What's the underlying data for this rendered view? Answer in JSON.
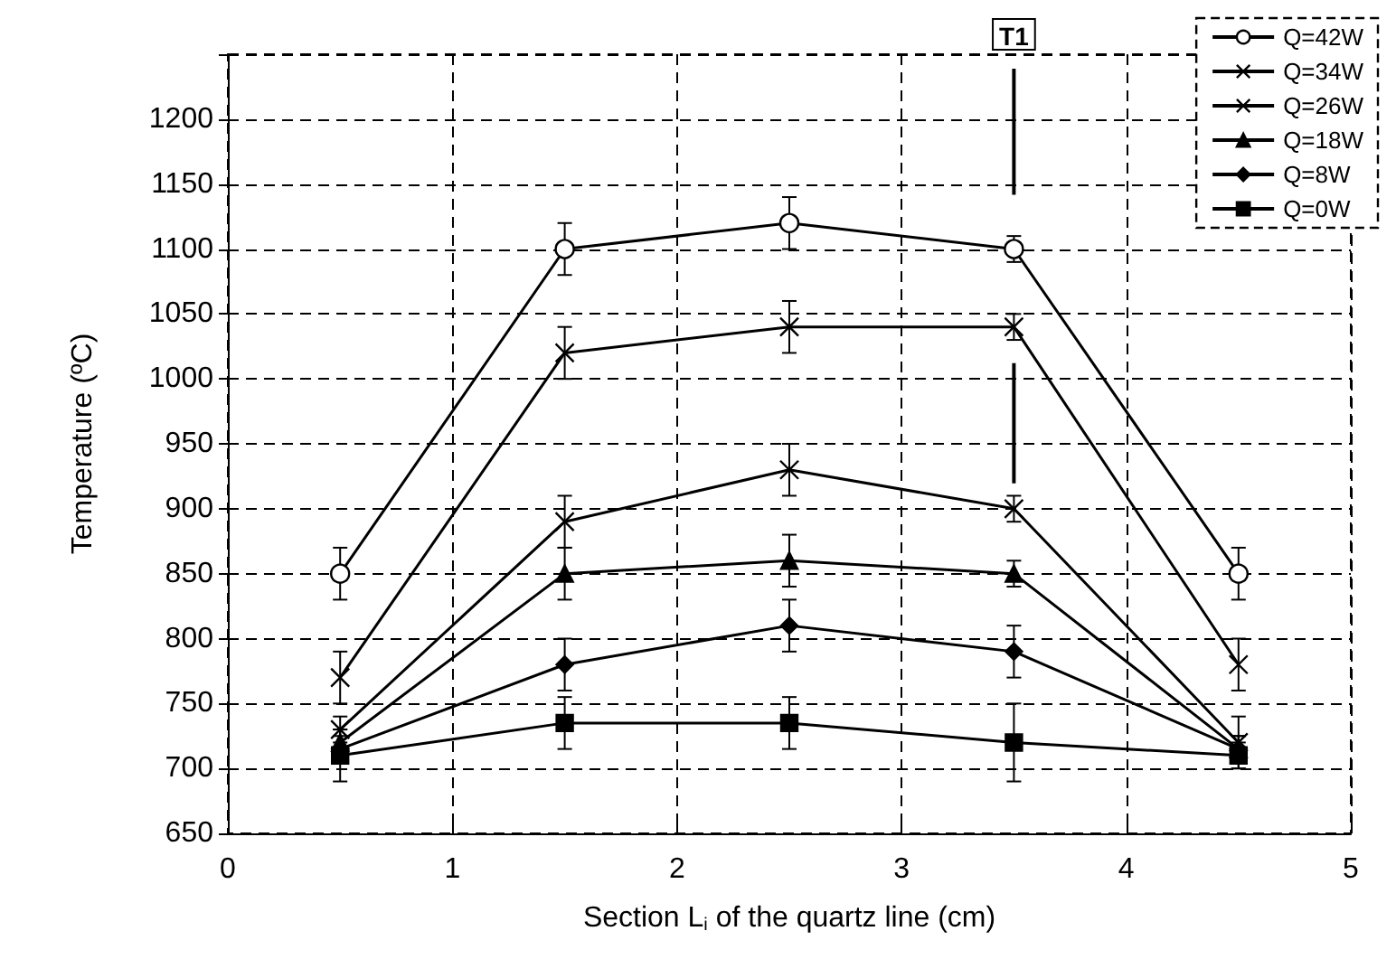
{
  "chart_data": {
    "type": "line",
    "xlabel": "Section L$_{i}$ of the quartz line (cm)",
    "ylabel": "Temperature (ºC)",
    "x": [
      0.5,
      1.5,
      2.5,
      3.5,
      4.5
    ],
    "series": [
      {
        "name": "Q=42W",
        "color": "#000000",
        "marker": "circle",
        "values": [
          850,
          1100,
          1120,
          1100,
          850
        ],
        "errors": [
          20,
          20,
          20,
          10,
          20
        ]
      },
      {
        "name": "Q=34W",
        "color": "#000000",
        "marker": "cross",
        "values": [
          770,
          1020,
          1040,
          1040,
          780
        ],
        "errors": [
          20,
          20,
          20,
          10,
          20
        ]
      },
      {
        "name": "Q=26W",
        "color": "#000000",
        "marker": "cross",
        "values": [
          730,
          890,
          930,
          900,
          720
        ],
        "errors": [
          10,
          20,
          20,
          10,
          20
        ]
      },
      {
        "name": "Q=18W",
        "color": "#000000",
        "marker": "triangle",
        "values": [
          720,
          850,
          860,
          850,
          715
        ],
        "errors": [
          10,
          20,
          20,
          10,
          10
        ]
      },
      {
        "name": "Q=8W",
        "color": "#000000",
        "marker": "diamond",
        "values": [
          715,
          780,
          810,
          790,
          715
        ],
        "errors": [
          10,
          20,
          20,
          20,
          10
        ]
      },
      {
        "name": "Q=0W",
        "color": "#000000",
        "marker": "square",
        "values": [
          710,
          735,
          735,
          720,
          710
        ],
        "errors": [
          20,
          20,
          20,
          30,
          10
        ]
      }
    ],
    "xlim": [
      0,
      5
    ],
    "xticks": [
      0,
      1,
      2,
      3,
      4,
      5
    ],
    "ylim": [
      650,
      1250
    ],
    "yticks": [
      650,
      700,
      750,
      800,
      850,
      900,
      950,
      1000,
      1050,
      1100,
      1150,
      1200,
      {
        "value": 1250,
        "label": null
      }
    ],
    "ref_lines": [
      {
        "axis": "x",
        "value": 3.5,
        "label": "T1",
        "color": "#000000",
        "line_style": "solid"
      }
    ],
    "grid": true,
    "legend": "top right",
    "line_style": "solid"
  }
}
